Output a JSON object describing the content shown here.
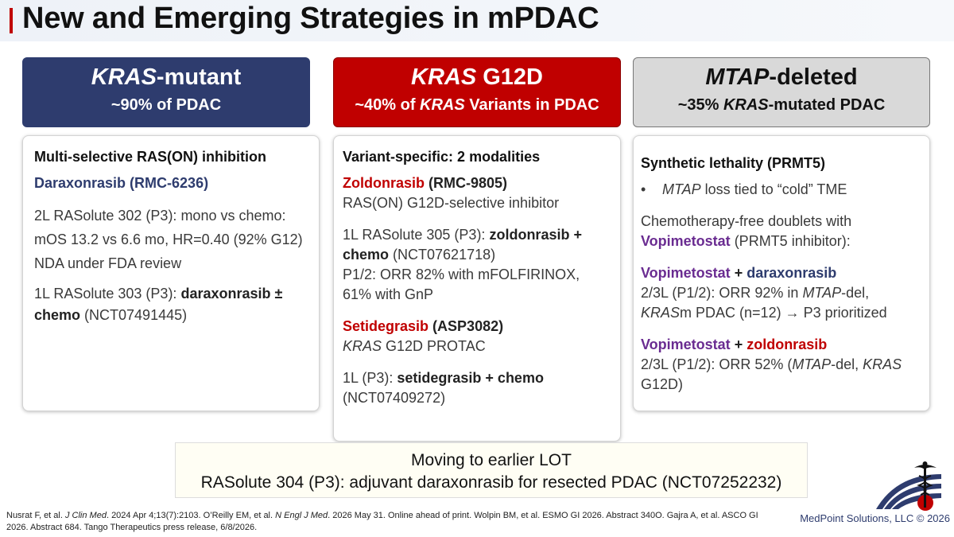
{
  "title": "New and Emerging Strategies in mPDAC",
  "headers": {
    "kras_mutant": {
      "title_italic": "KRAS",
      "title_rest": "-mutant",
      "subtitle": "~90% of PDAC"
    },
    "g12d": {
      "title_italic": "KRAS",
      "title_rest": " G12D",
      "sub_pre": "~40% of ",
      "sub_italic": "KRAS",
      "sub_post": " Variants in PDAC"
    },
    "mtap": {
      "title_italic": "MTAP",
      "title_rest": "-deleted",
      "sub_pre": "~35% ",
      "sub_italic": "KRAS",
      "sub_post": "-mutated PDAC"
    }
  },
  "col1": {
    "heading": "Multi-selective RAS(ON) inhibition",
    "drug": "Daraxonrasib (RMC-6236)",
    "line1": "2L RASolute 302 (P3): mono vs chemo:",
    "line2": "mOS 13.2 vs 6.6 mo, HR=0.40 (92% G12)",
    "line3": "NDA under FDA review",
    "l4_pre": "1L RASolute 303 (P3): ",
    "l4_bold": "daraxonrasib ±",
    "l5_bold": "chemo",
    "l5_rest": " (NCT07491445)"
  },
  "col2": {
    "heading": "Variant-specific: 2 modalities",
    "drug1_name": "Zoldonrasib",
    "drug1_code": " (RMC-9805)",
    "drug1_desc": "RAS(ON) G12D-selective inhibitor",
    "t1_pre": "1L RASolute 305 (P3): ",
    "t1_bold": "zoldonrasib +",
    "t2_bold": "chemo",
    "t2_rest": " (NCT07621718)",
    "t3": "P1/2: ORR 82% with mFOLFIRINOX,",
    "t4": "61% with GnP",
    "drug2_name": "Setidegrasib",
    "drug2_code": " (ASP3082)",
    "drug2_italic": "KRAS",
    "drug2_desc": " G12D PROTAC",
    "t5_pre": "1L (P3): ",
    "t5_bold": "setidegrasib + chemo",
    "t6": "(NCT07409272)"
  },
  "col3": {
    "heading": "Synthetic lethality (PRMT5)",
    "bullet": "•",
    "bullet_italic": "MTAP",
    "bullet_rest": " loss tied to “cold” TME",
    "p1": "Chemotherapy-free doublets with",
    "p2_purple": "Vopimetostat",
    "p2_rest": " (PRMT5 inhibitor):",
    "c1_purple": "Vopimetostat",
    "c1_plus": " + ",
    "c1_navy": "daraxonrasib",
    "c1_l2_pre": "2/3L (P1/2): ORR 92% in ",
    "c1_l2_italic": "MTAP",
    "c1_l2_post": "-del,",
    "c1_l3_italic": "KRAS",
    "c1_l3_post": "m PDAC (n=12) → P3 prioritized",
    "c2_purple": "Vopimetostat",
    "c2_plus": " + ",
    "c2_red": "zoldonrasib",
    "c2_l2_pre": "2/3L (P1/2): ORR 52% (",
    "c2_l2_italic1": "MTAP",
    "c2_l2_mid": "-del, ",
    "c2_l2_italic2": "KRAS",
    "c2_l3": "G12D)"
  },
  "bottom": {
    "line1": "Moving to earlier LOT",
    "line2": "RASolute 304 (P3): adjuvant daraxonrasib for resected PDAC (NCT07252232)"
  },
  "refs": {
    "r1": "Nusrat F, et al. ",
    "r1_it": "J Clin Med",
    "r2": ". 2024 Apr 4;13(7):2103. O’Reilly EM, et al. ",
    "r2_it": "N Engl J Med",
    "r3": ". 2026 May 31. Online ahead of print. Wolpin BM, et al. ESMO GI 2026. Abstract 340O. Gajra A, et al. ASCO GI 2026. Abstract 684. Tango Therapeutics press release, 6/8/2026."
  },
  "copyright": "MedPoint Solutions, LLC © 2026",
  "colors": {
    "navy": "#2e3c6e",
    "red": "#c00000",
    "purple": "#6a2c91",
    "gray": "#d9d9d9"
  }
}
